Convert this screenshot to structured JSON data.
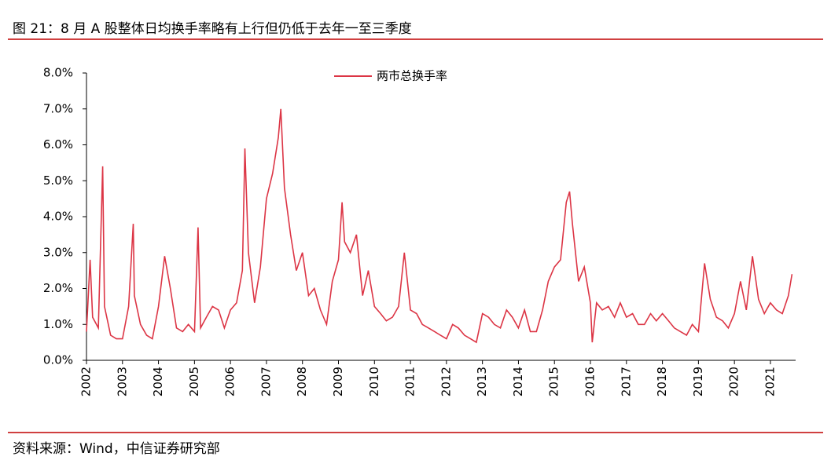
{
  "chart_data": {
    "type": "line",
    "title": "图 21：8 月 A 股整体日均换手率略有上行但仍低于去年一至三季度",
    "source": "资料来源：Wind，中信证券研究部",
    "legend": "top-center",
    "x": [
      2002.0,
      2002.1,
      2002.17,
      2002.33,
      2002.45,
      2002.5,
      2002.67,
      2002.83,
      2003.0,
      2003.17,
      2003.3,
      2003.33,
      2003.5,
      2003.67,
      2003.83,
      2004.0,
      2004.17,
      2004.33,
      2004.5,
      2004.67,
      2004.83,
      2005.0,
      2005.1,
      2005.17,
      2005.33,
      2005.5,
      2005.67,
      2005.83,
      2006.0,
      2006.17,
      2006.33,
      2006.4,
      2006.5,
      2006.67,
      2006.83,
      2007.0,
      2007.17,
      2007.33,
      2007.4,
      2007.5,
      2007.67,
      2007.83,
      2008.0,
      2008.17,
      2008.33,
      2008.5,
      2008.67,
      2008.83,
      2009.0,
      2009.1,
      2009.17,
      2009.33,
      2009.5,
      2009.67,
      2009.83,
      2010.0,
      2010.17,
      2010.33,
      2010.5,
      2010.67,
      2010.83,
      2011.0,
      2011.17,
      2011.33,
      2011.5,
      2011.67,
      2011.83,
      2012.0,
      2012.17,
      2012.33,
      2012.5,
      2012.67,
      2012.83,
      2013.0,
      2013.17,
      2013.33,
      2013.5,
      2013.67,
      2013.83,
      2014.0,
      2014.17,
      2014.33,
      2014.5,
      2014.67,
      2014.83,
      2015.0,
      2015.17,
      2015.33,
      2015.42,
      2015.5,
      2015.67,
      2015.83,
      2016.0,
      2016.05,
      2016.17,
      2016.33,
      2016.5,
      2016.67,
      2016.83,
      2017.0,
      2017.17,
      2017.33,
      2017.5,
      2017.67,
      2017.83,
      2018.0,
      2018.17,
      2018.33,
      2018.5,
      2018.67,
      2018.83,
      2019.0,
      2019.17,
      2019.33,
      2019.5,
      2019.67,
      2019.83,
      2020.0,
      2020.17,
      2020.33,
      2020.5,
      2020.67,
      2020.83,
      2021.0,
      2021.17,
      2021.33,
      2021.5,
      2021.6
    ],
    "series": [
      {
        "name": "两市总换手率",
        "color": "#dc3545",
        "values": [
          0.8,
          2.8,
          1.2,
          0.9,
          5.4,
          1.5,
          0.7,
          0.6,
          0.6,
          1.5,
          3.8,
          1.8,
          1.0,
          0.7,
          0.6,
          1.5,
          2.9,
          2.0,
          0.9,
          0.8,
          1.0,
          0.8,
          3.7,
          0.9,
          1.2,
          1.5,
          1.4,
          0.9,
          1.4,
          1.6,
          2.5,
          5.9,
          3.0,
          1.6,
          2.6,
          4.5,
          5.2,
          6.2,
          7.0,
          4.8,
          3.5,
          2.5,
          3.0,
          1.8,
          2.0,
          1.4,
          1.0,
          2.2,
          2.8,
          4.4,
          3.3,
          3.0,
          3.5,
          1.8,
          2.5,
          1.5,
          1.3,
          1.1,
          1.2,
          1.5,
          3.0,
          1.4,
          1.3,
          1.0,
          0.9,
          0.8,
          0.7,
          0.6,
          1.0,
          0.9,
          0.7,
          0.6,
          0.5,
          1.3,
          1.2,
          1.0,
          0.9,
          1.4,
          1.2,
          0.9,
          1.4,
          0.8,
          0.8,
          1.4,
          2.2,
          2.6,
          2.8,
          4.4,
          4.7,
          3.8,
          2.2,
          2.6,
          1.6,
          0.5,
          1.6,
          1.4,
          1.5,
          1.2,
          1.6,
          1.2,
          1.3,
          1.0,
          1.0,
          1.3,
          1.1,
          1.3,
          1.1,
          0.9,
          0.8,
          0.7,
          1.0,
          0.8,
          2.7,
          1.7,
          1.2,
          1.1,
          0.9,
          1.3,
          2.2,
          1.4,
          2.9,
          1.7,
          1.3,
          1.6,
          1.4,
          1.3,
          1.8,
          2.4
        ]
      }
    ],
    "xlim": [
      2002,
      2021.7
    ],
    "xticks": [
      2002,
      2003,
      2004,
      2005,
      2006,
      2007,
      2008,
      2009,
      2010,
      2011,
      2012,
      2013,
      2014,
      2015,
      2016,
      2017,
      2018,
      2019,
      2020,
      2021
    ],
    "ylim": [
      0,
      8
    ],
    "yticks": [
      {
        "value": 0,
        "label": "0.0%"
      },
      {
        "value": 1,
        "label": "1.0%"
      },
      {
        "value": 2,
        "label": "2.0%"
      },
      {
        "value": 3,
        "label": "3.0%"
      },
      {
        "value": 4,
        "label": "4.0%"
      },
      {
        "value": 5,
        "label": "5.0%"
      },
      {
        "value": 6,
        "label": "6.0%"
      },
      {
        "value": 7,
        "label": "7.0%"
      },
      {
        "value": 8,
        "label": "8.0%"
      }
    ]
  }
}
